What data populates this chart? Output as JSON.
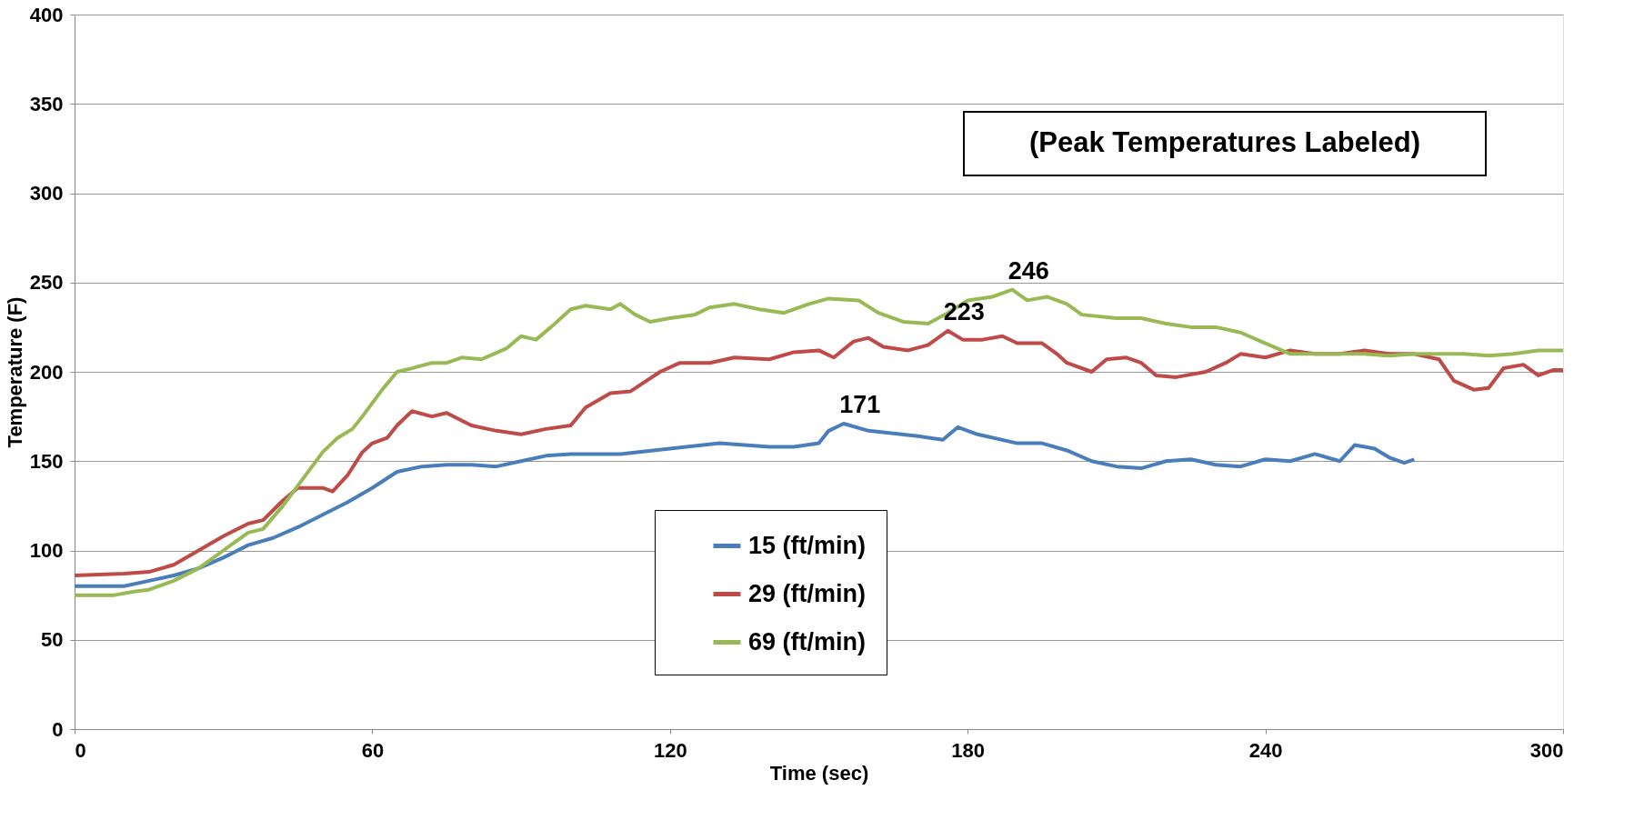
{
  "chart_data": {
    "type": "line",
    "xlabel": "Time (sec)",
    "ylabel": "Temperature (F)",
    "xlim": [
      0,
      300
    ],
    "xticks": [
      0,
      60,
      120,
      180,
      240,
      300
    ],
    "ylim": [
      0,
      400
    ],
    "yticks": [
      0,
      50,
      100,
      150,
      200,
      250,
      300,
      350,
      400
    ],
    "grid": "y",
    "legend": "bottom",
    "marker": "none",
    "line_style": "solid",
    "annotations": [
      "(Peak Temperatures Labeled)",
      {
        "text": "171",
        "x": 155,
        "y": 171
      },
      {
        "text": "223",
        "x": 176,
        "y": 223
      },
      {
        "text": "246",
        "x": 189,
        "y": 246
      }
    ],
    "series": [
      {
        "name": "15 (ft/min)",
        "color": "#4a7ebb",
        "x": [
          0,
          5,
          10,
          15,
          20,
          25,
          30,
          35,
          40,
          45,
          50,
          55,
          60,
          65,
          70,
          75,
          80,
          85,
          90,
          95,
          100,
          110,
          120,
          130,
          140,
          145,
          150,
          152,
          155,
          160,
          170,
          175,
          178,
          182,
          190,
          195,
          200,
          205,
          210,
          215,
          220,
          225,
          230,
          235,
          240,
          245,
          250,
          255,
          258,
          262,
          265,
          268,
          270
        ],
        "values": [
          80,
          80,
          80,
          83,
          86,
          90,
          96,
          103,
          107,
          113,
          120,
          127,
          135,
          144,
          147,
          148,
          148,
          147,
          150,
          153,
          154,
          154,
          157,
          160,
          158,
          158,
          160,
          167,
          171,
          167,
          164,
          162,
          169,
          165,
          160,
          160,
          156,
          150,
          147,
          146,
          150,
          151,
          148,
          147,
          151,
          150,
          154,
          150,
          159,
          157,
          152,
          149,
          151
        ]
      },
      {
        "name": "29 (ft/min)",
        "color": "#be4b48",
        "x": [
          0,
          10,
          15,
          20,
          25,
          30,
          35,
          38,
          42,
          45,
          50,
          52,
          55,
          58,
          60,
          63,
          65,
          68,
          72,
          75,
          80,
          85,
          90,
          95,
          100,
          103,
          108,
          112,
          118,
          122,
          128,
          133,
          140,
          145,
          150,
          153,
          157,
          160,
          163,
          168,
          172,
          176,
          179,
          183,
          187,
          190,
          195,
          198,
          200,
          205,
          208,
          212,
          215,
          218,
          222,
          228,
          232,
          235,
          240,
          245,
          250,
          255,
          260,
          265,
          270,
          275,
          278,
          282,
          285,
          288,
          292,
          295,
          298,
          300
        ],
        "values": [
          86,
          87,
          88,
          92,
          100,
          108,
          115,
          117,
          128,
          135,
          135,
          133,
          142,
          155,
          160,
          163,
          170,
          178,
          175,
          177,
          170,
          167,
          165,
          168,
          170,
          180,
          188,
          189,
          200,
          205,
          205,
          208,
          207,
          211,
          212,
          208,
          217,
          219,
          214,
          212,
          215,
          223,
          218,
          218,
          220,
          216,
          216,
          210,
          205,
          200,
          207,
          208,
          205,
          198,
          197,
          200,
          205,
          210,
          208,
          212,
          210,
          210,
          212,
          210,
          210,
          207,
          195,
          190,
          191,
          202,
          204,
          198,
          201,
          201
        ]
      },
      {
        "name": "69 (ft/min)",
        "color": "#98b954",
        "x": [
          0,
          8,
          12,
          15,
          20,
          25,
          30,
          35,
          38,
          42,
          46,
          50,
          53,
          56,
          58,
          62,
          65,
          68,
          72,
          75,
          78,
          82,
          87,
          90,
          93,
          96,
          100,
          103,
          108,
          110,
          113,
          116,
          120,
          125,
          128,
          133,
          138,
          143,
          148,
          152,
          158,
          162,
          167,
          172,
          176,
          180,
          185,
          189,
          192,
          196,
          200,
          203,
          210,
          215,
          220,
          225,
          230,
          235,
          240,
          245,
          250,
          260,
          265,
          270,
          275,
          280,
          285,
          290,
          295,
          300
        ],
        "values": [
          75,
          75,
          77,
          78,
          83,
          90,
          100,
          110,
          112,
          125,
          140,
          155,
          163,
          168,
          175,
          190,
          200,
          202,
          205,
          205,
          208,
          207,
          213,
          220,
          218,
          225,
          235,
          237,
          235,
          238,
          232,
          228,
          230,
          232,
          236,
          238,
          235,
          233,
          238,
          241,
          240,
          233,
          228,
          227,
          233,
          240,
          242,
          246,
          240,
          242,
          238,
          232,
          230,
          230,
          227,
          225,
          225,
          222,
          216,
          210,
          210,
          210,
          209,
          210,
          210,
          210,
          209,
          210,
          212,
          212
        ]
      }
    ]
  }
}
